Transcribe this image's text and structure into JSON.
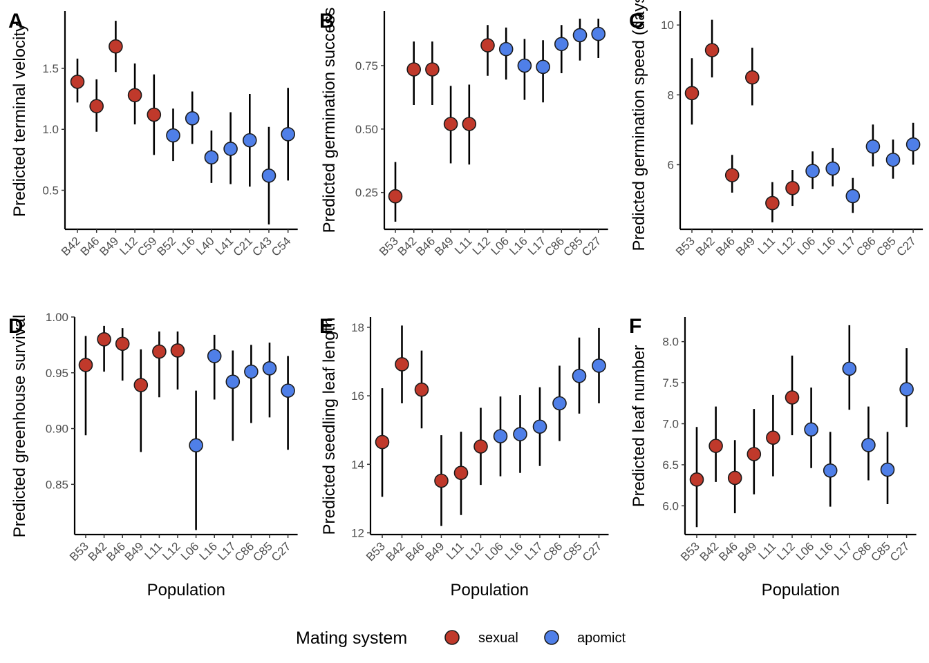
{
  "colors": {
    "sexual": "#C0392B",
    "apomict": "#4F7FE8",
    "point_stroke": "#1a1a1a",
    "error_bar": "#000000",
    "tick_text": "#4d4d4d"
  },
  "legend": {
    "title": "Mating system",
    "placement": "bottom",
    "items": [
      {
        "key": "sexual",
        "label": "sexual"
      },
      {
        "key": "apomict",
        "label": "apomict"
      }
    ]
  },
  "chart_data": [
    {
      "tag": "A",
      "type": "scatter",
      "ylabel": "Predicted terminal velocity",
      "xlabel": "",
      "ylim": [
        0.18,
        1.97
      ],
      "yticks": [
        0.5,
        1.0,
        1.5
      ],
      "ytick_labels": [
        "0.5",
        "1.0",
        "1.5"
      ],
      "categories": [
        "B42",
        "B46",
        "B49",
        "L12",
        "C59",
        "B52",
        "L16",
        "L40",
        "L41",
        "C21",
        "C43",
        "C54"
      ],
      "groups": [
        "sexual",
        "sexual",
        "sexual",
        "sexual",
        "sexual",
        "apomict",
        "apomict",
        "apomict",
        "apomict",
        "apomict",
        "apomict",
        "apomict"
      ],
      "values": [
        1.39,
        1.19,
        1.68,
        1.28,
        1.12,
        0.95,
        1.09,
        0.77,
        0.84,
        0.91,
        0.62,
        0.96
      ],
      "lower": [
        1.22,
        0.98,
        1.47,
        1.04,
        0.79,
        0.74,
        0.88,
        0.56,
        0.55,
        0.53,
        0.22,
        0.58
      ],
      "upper": [
        1.58,
        1.41,
        1.89,
        1.54,
        1.45,
        1.17,
        1.31,
        0.99,
        1.14,
        1.29,
        1.02,
        1.34
      ]
    },
    {
      "tag": "B",
      "type": "scatter",
      "ylabel": "Predicted germination success",
      "xlabel": "",
      "ylim": [
        0.105,
        0.965
      ],
      "yticks": [
        0.25,
        0.5,
        0.75
      ],
      "ytick_labels": [
        "0.25",
        "0.50",
        "0.75"
      ],
      "categories": [
        "B53",
        "B42",
        "B46",
        "B49",
        "L11",
        "L12",
        "L06",
        "L16",
        "L17",
        "C86",
        "C85",
        "C27"
      ],
      "groups": [
        "sexual",
        "sexual",
        "sexual",
        "sexual",
        "sexual",
        "sexual",
        "apomict",
        "apomict",
        "apomict",
        "apomict",
        "apomict",
        "apomict"
      ],
      "values": [
        0.235,
        0.735,
        0.735,
        0.52,
        0.52,
        0.83,
        0.815,
        0.75,
        0.745,
        0.835,
        0.87,
        0.875
      ],
      "lower": [
        0.135,
        0.595,
        0.595,
        0.365,
        0.36,
        0.71,
        0.695,
        0.615,
        0.605,
        0.72,
        0.77,
        0.78
      ],
      "upper": [
        0.37,
        0.845,
        0.845,
        0.67,
        0.675,
        0.91,
        0.9,
        0.855,
        0.85,
        0.91,
        0.935,
        0.935
      ]
    },
    {
      "tag": "C",
      "type": "scatter",
      "ylabel": "Predicted germination speed (days)",
      "xlabel": "",
      "ylim": [
        4.15,
        10.4
      ],
      "yticks": [
        6,
        8,
        10
      ],
      "ytick_labels": [
        "6",
        "8",
        "10"
      ],
      "categories": [
        "B53",
        "B42",
        "B46",
        "B49",
        "L11",
        "L12",
        "L06",
        "L16",
        "L17",
        "C86",
        "C85",
        "C27"
      ],
      "groups": [
        "sexual",
        "sexual",
        "sexual",
        "sexual",
        "sexual",
        "sexual",
        "apomict",
        "apomict",
        "apomict",
        "apomict",
        "apomict",
        "apomict"
      ],
      "values": [
        8.05,
        9.28,
        5.7,
        8.5,
        4.9,
        5.33,
        5.82,
        5.89,
        5.1,
        6.52,
        6.14,
        6.58
      ],
      "lower": [
        7.15,
        8.5,
        5.2,
        7.7,
        4.35,
        4.82,
        5.3,
        5.38,
        4.62,
        5.95,
        5.6,
        6.0
      ],
      "upper": [
        9.05,
        10.15,
        6.28,
        9.35,
        5.5,
        5.85,
        6.38,
        6.48,
        5.62,
        7.15,
        6.72,
        7.2
      ]
    },
    {
      "tag": "D",
      "type": "scatter",
      "ylabel": "Predicted greenhouse survival",
      "xlabel": "Population",
      "ylim": [
        0.805,
        1.0
      ],
      "yticks": [
        0.85,
        0.9,
        0.95,
        1.0
      ],
      "ytick_labels": [
        "0.85",
        "0.90",
        "0.95",
        "1.00"
      ],
      "categories": [
        "B53",
        "B42",
        "B46",
        "B49",
        "L11",
        "L12",
        "L06",
        "L16",
        "L17",
        "C86",
        "C85",
        "C27"
      ],
      "groups": [
        "sexual",
        "sexual",
        "sexual",
        "sexual",
        "sexual",
        "sexual",
        "apomict",
        "apomict",
        "apomict",
        "apomict",
        "apomict",
        "apomict"
      ],
      "values": [
        0.957,
        0.98,
        0.976,
        0.939,
        0.969,
        0.97,
        0.885,
        0.965,
        0.942,
        0.951,
        0.954,
        0.934
      ],
      "lower": [
        0.894,
        0.951,
        0.943,
        0.879,
        0.928,
        0.935,
        0.809,
        0.926,
        0.889,
        0.905,
        0.91,
        0.881
      ],
      "upper": [
        0.983,
        0.992,
        0.99,
        0.971,
        0.987,
        0.987,
        0.934,
        0.984,
        0.97,
        0.975,
        0.977,
        0.965
      ]
    },
    {
      "tag": "E",
      "type": "scatter",
      "ylabel": "Predicted seedling leaf length",
      "xlabel": "Population",
      "ylim": [
        11.95,
        18.3
      ],
      "yticks": [
        12,
        14,
        16,
        18
      ],
      "ytick_labels": [
        "12",
        "14",
        "16",
        "18"
      ],
      "categories": [
        "B53",
        "B42",
        "B46",
        "B49",
        "L11",
        "L12",
        "L06",
        "L16",
        "L17",
        "C86",
        "C85",
        "C27"
      ],
      "groups": [
        "sexual",
        "sexual",
        "sexual",
        "sexual",
        "sexual",
        "sexual",
        "apomict",
        "apomict",
        "apomict",
        "apomict",
        "apomict",
        "apomict"
      ],
      "values": [
        14.65,
        16.92,
        16.18,
        13.52,
        13.75,
        14.52,
        14.82,
        14.88,
        15.1,
        15.78,
        16.58,
        16.88
      ],
      "lower": [
        13.05,
        15.78,
        15.05,
        12.2,
        12.52,
        13.4,
        13.65,
        13.75,
        13.95,
        14.68,
        15.48,
        15.78
      ],
      "upper": [
        16.22,
        18.05,
        17.32,
        14.85,
        14.95,
        15.65,
        15.98,
        16.02,
        16.25,
        16.88,
        17.7,
        17.98
      ]
    },
    {
      "tag": "F",
      "type": "scatter",
      "ylabel": "Predicted leaf number",
      "xlabel": "Population",
      "ylim": [
        5.65,
        8.3
      ],
      "yticks": [
        6.0,
        6.5,
        7.0,
        7.5,
        8.0
      ],
      "ytick_labels": [
        "6.0",
        "6.5",
        "7.0",
        "7.5",
        "8.0"
      ],
      "categories": [
        "B53",
        "B42",
        "B46",
        "B49",
        "L11",
        "L12",
        "L06",
        "L16",
        "L17",
        "C86",
        "C85",
        "C27"
      ],
      "groups": [
        "sexual",
        "sexual",
        "sexual",
        "sexual",
        "sexual",
        "sexual",
        "apomict",
        "apomict",
        "apomict",
        "apomict",
        "apomict",
        "apomict"
      ],
      "values": [
        6.32,
        6.73,
        6.34,
        6.63,
        6.83,
        7.32,
        6.93,
        6.43,
        7.67,
        6.74,
        6.44,
        7.42
      ],
      "lower": [
        5.74,
        6.29,
        5.91,
        6.14,
        6.36,
        6.86,
        6.46,
        5.99,
        7.17,
        6.31,
        6.02,
        6.96
      ],
      "upper": [
        6.96,
        7.21,
        6.8,
        7.18,
        7.35,
        7.83,
        7.44,
        6.9,
        8.2,
        7.21,
        6.9,
        7.92
      ]
    }
  ]
}
